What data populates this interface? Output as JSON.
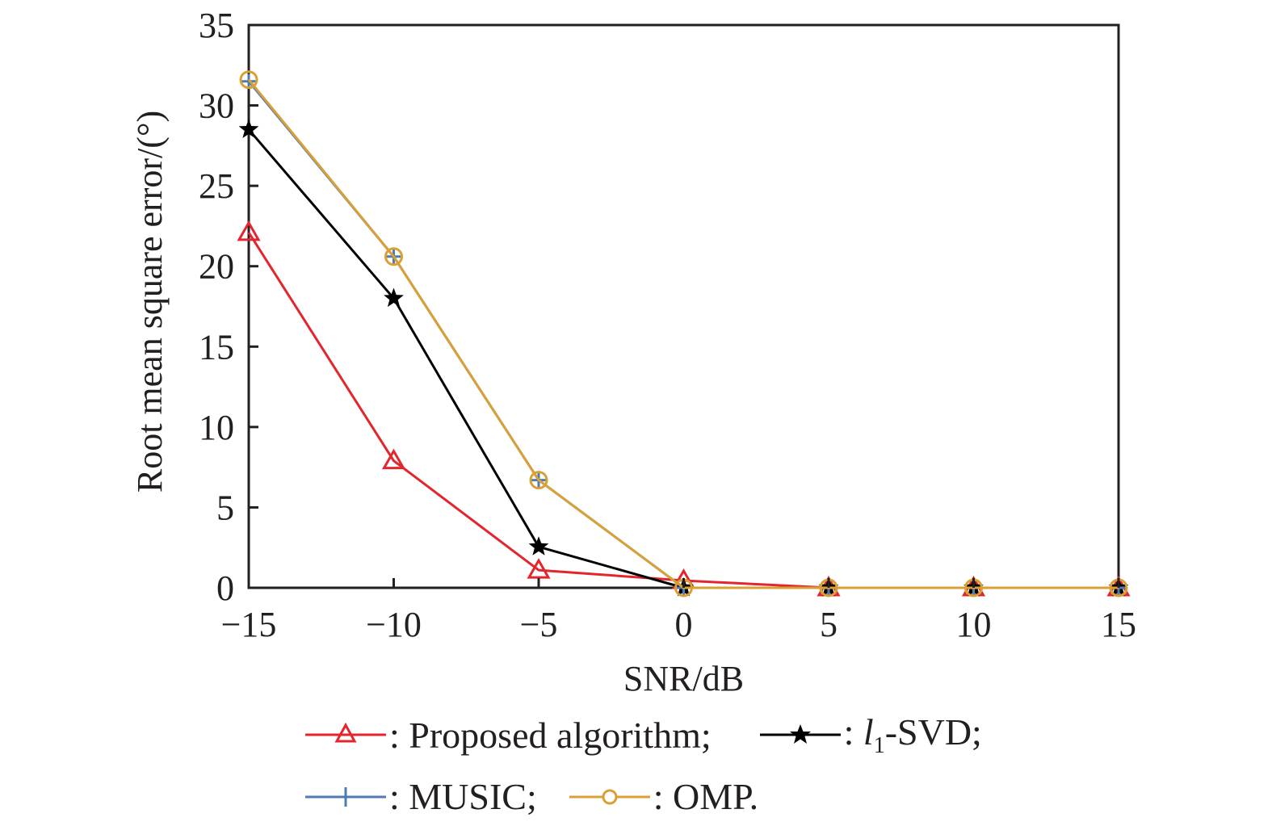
{
  "chart_data": {
    "type": "line",
    "title": "",
    "xlabel": "SNR/dB",
    "ylabel": "Root mean square error/(°)",
    "x": [
      -15,
      -10,
      -5,
      0,
      5,
      10,
      15
    ],
    "xlim": [
      -15,
      15
    ],
    "ylim": [
      0,
      35
    ],
    "xticks": [
      -15,
      -10,
      -5,
      0,
      5,
      10,
      15
    ],
    "xtick_labels": [
      "−15",
      "−10",
      "−5",
      "0",
      "5",
      "10",
      "15"
    ],
    "yticks": [
      0,
      5,
      10,
      15,
      20,
      25,
      30,
      35
    ],
    "ytick_labels": [
      "0",
      "5",
      "10",
      "15",
      "20",
      "25",
      "30",
      "35"
    ],
    "grid": false,
    "legend_position": "bottom",
    "series": [
      {
        "name": "Proposed algorithm",
        "legend_label": ": Proposed algorithm;",
        "color": "#e4252d",
        "marker": "triangle",
        "values": [
          22.1,
          7.9,
          1.1,
          0.45,
          0.0,
          0.0,
          0.0
        ]
      },
      {
        "name": "l1-SVD",
        "legend_label_prefix": ": ",
        "legend_l": "l",
        "legend_sub": "1",
        "legend_suffix": "-SVD;",
        "color": "#000000",
        "marker": "star",
        "values": [
          28.5,
          18.0,
          2.55,
          0.0,
          0.0,
          0.0,
          0.0
        ]
      },
      {
        "name": "MUSIC",
        "legend_label": ": MUSIC;",
        "color": "#4f7bb5",
        "marker": "plus",
        "values": [
          31.5,
          20.6,
          6.7,
          0.0,
          0.0,
          0.0,
          0.0
        ]
      },
      {
        "name": "OMP",
        "legend_label": ": OMP.",
        "color": "#d9a035",
        "marker": "circle",
        "values": [
          31.6,
          20.6,
          6.7,
          0.0,
          0.0,
          0.0,
          0.0
        ]
      }
    ]
  }
}
